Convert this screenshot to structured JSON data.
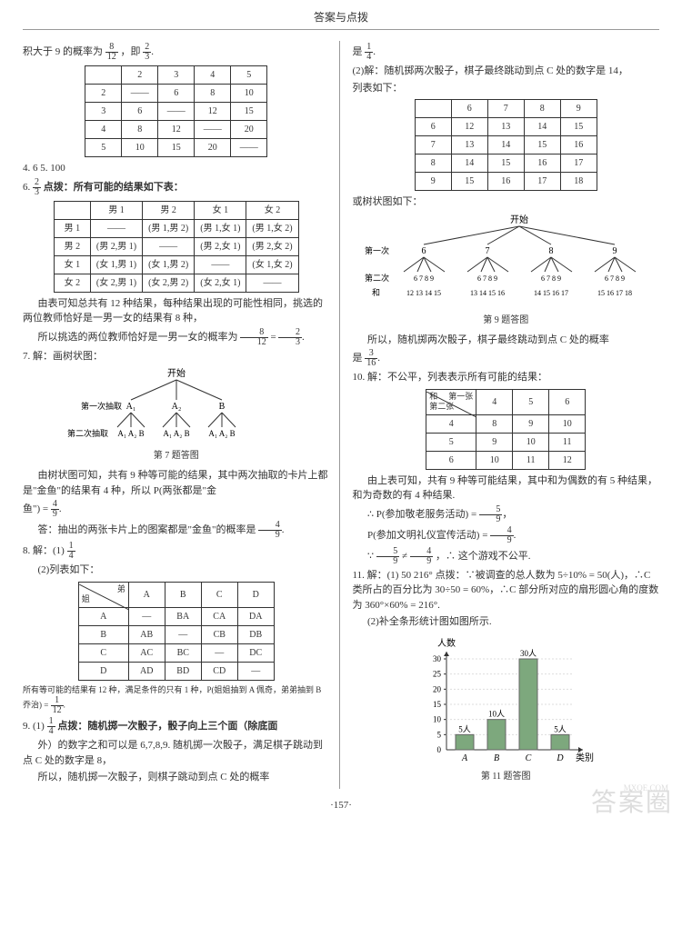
{
  "header": "答案与点拨",
  "left": {
    "intro": "积大于 9 的概率为",
    "frac1_n": "8",
    "frac1_d": "12",
    "intro2": "，即",
    "frac2_n": "2",
    "frac2_d": "3",
    "t1": {
      "head": [
        "",
        "2",
        "3",
        "4",
        "5"
      ],
      "rows": [
        [
          "2",
          "——",
          "6",
          "8",
          "10"
        ],
        [
          "3",
          "6",
          "——",
          "12",
          "15"
        ],
        [
          "4",
          "8",
          "12",
          "——",
          "20"
        ],
        [
          "5",
          "10",
          "15",
          "20",
          "——"
        ]
      ]
    },
    "q4": "4. 6   5. 100",
    "q6a": "6. ",
    "q6_frac_n": "2",
    "q6_frac_d": "3",
    "q6b": "  点拨：所有可能的结果如下表：",
    "t2": {
      "head": [
        "",
        "男 1",
        "男 2",
        "女 1",
        "女 2"
      ],
      "rows": [
        [
          "男 1",
          "——",
          "(男 1,男 2)",
          "(男 1,女 1)",
          "(男 1,女 2)"
        ],
        [
          "男 2",
          "(男 2,男 1)",
          "——",
          "(男 2,女 1)",
          "(男 2,女 2)"
        ],
        [
          "女 1",
          "(女 1,男 1)",
          "(女 1,男 2)",
          "——",
          "(女 1,女 2)"
        ],
        [
          "女 2",
          "(女 2,男 1)",
          "(女 2,男 2)",
          "(女 2,女 1)",
          "——"
        ]
      ]
    },
    "q6c": "由表可知总共有 12 种结果，每种结果出现的可能性相同，挑选的两位教师恰好是一男一女的结果有 8 种，",
    "q6d": "所以挑选的两位教师恰好是一男一女的概率为",
    "q6_f2n": "8",
    "q6_f2d": "12",
    "q6_eq": " = ",
    "q6_f3n": "2",
    "q6_f3d": "3",
    "q7": "7. 解：画树状图：",
    "tree7": {
      "start": "开始",
      "l1": [
        "A₁",
        "A₂",
        "B"
      ],
      "l2": [
        "A₁ A₂ B",
        "A₁ A₂ B",
        "A₁ A₂ B"
      ],
      "labels": [
        "第一次抽取",
        "第二次抽取"
      ]
    },
    "cap7": "第 7 题答图",
    "q7a": "由树状图可知，共有 9 种等可能的结果，其中两次抽取的卡片上都是\"金鱼\"的结果有 4 种，所以 P(两张都是\"金",
    "q7b": "鱼\") = ",
    "q7_fn": "4",
    "q7_fd": "9",
    "q7c": "答：抽出的两张卡片上的图案都是\"金鱼\"的概率是",
    "q7_f2n": "4",
    "q7_f2d": "9",
    "q8": "8. 解：(1) ",
    "q8_fn": "1",
    "q8_fd": "4",
    "q8b": "(2)列表如下：",
    "t3": {
      "corner_top": "弟",
      "corner_left": "姐",
      "head": [
        "A",
        "B",
        "C",
        "D"
      ],
      "rows": [
        [
          "A",
          "—",
          "BA",
          "CA",
          "DA"
        ],
        [
          "B",
          "AB",
          "—",
          "CB",
          "DB"
        ],
        [
          "C",
          "AC",
          "BC",
          "—",
          "DC"
        ],
        [
          "D",
          "AD",
          "BD",
          "CD",
          "—"
        ]
      ]
    },
    "q8c": "所有等可能的结果有 12 种，满足条件的只有 1 种，P(姐姐抽到 A 佩奇，弟弟抽到 B 乔治) = ",
    "q8_f2n": "1",
    "q8_f2d": "12",
    "q9": "9. (1) ",
    "q9_fn": "1",
    "q9_fd": "4",
    "q9a": "  点拨：随机掷一次骰子，骰子向上三个面（除底面",
    "q9b": "外）的数字之和可以是 6,7,8,9. 随机掷一次骰子，满足棋子跳动到点 C 处的数字是 8，",
    "q9c": "所以，随机掷一次骰子，则棋子跳动到点 C 处的概率"
  },
  "right": {
    "cont": "是 ",
    "cont_fn": "1",
    "cont_fd": "4",
    "q2a": "(2)解：随机掷两次骰子，棋子最终跳动到点 C 处的数字是 14，",
    "q2b": "列表如下：",
    "t4": {
      "head": [
        "",
        "6",
        "7",
        "8",
        "9"
      ],
      "rows": [
        [
          "6",
          "12",
          "13",
          "14",
          "15"
        ],
        [
          "7",
          "13",
          "14",
          "15",
          "16"
        ],
        [
          "8",
          "14",
          "15",
          "16",
          "17"
        ],
        [
          "9",
          "15",
          "16",
          "17",
          "18"
        ]
      ]
    },
    "tree_label": "或树状图如下：",
    "tree9": {
      "start": "开始",
      "l1": [
        "6",
        "7",
        "8",
        "9"
      ],
      "l2": [
        "6 7 8 9",
        "6 7 8 9",
        "6 7 8 9",
        "6 7 8 9"
      ],
      "sums": [
        "12 13 14 15",
        "13 14 15 16",
        "14 15 16 17",
        "15 16 17 18"
      ],
      "labels": [
        "第一次",
        "第二次",
        "和"
      ]
    },
    "cap9": "第 9 题答图",
    "q9d": "所以，随机掷两次骰子，棋子最终跳动到点 C 处的概率",
    "q9e": "是 ",
    "q9e_fn": "3",
    "q9e_fd": "16",
    "q10": "10. 解：不公平，列表表示所有可能的结果：",
    "t5": {
      "corner_top": "第一张",
      "corner_left": "第二张",
      "corner_sum": "和",
      "head": [
        "4",
        "5",
        "6"
      ],
      "rows": [
        [
          "4",
          "8",
          "9",
          "10"
        ],
        [
          "5",
          "9",
          "10",
          "11"
        ],
        [
          "6",
          "10",
          "11",
          "12"
        ]
      ]
    },
    "q10a": "由上表可知，共有 9 种等可能结果，其中和为偶数的有 5 种结果，和为奇数的有 4 种结果.",
    "q10b": "∴ P(参加敬老服务活动) = ",
    "q10b_fn": "5",
    "q10b_fd": "9",
    "q10c": "P(参加文明礼仪宣传活动) = ",
    "q10c_fn": "4",
    "q10c_fd": "9",
    "q10d": "∵ ",
    "q10d_f1n": "5",
    "q10d_f1d": "9",
    "q10d_ne": " ≠ ",
    "q10d_f2n": "4",
    "q10d_f2d": "9",
    "q10e": "，∴ 这个游戏不公平.",
    "q11": "11. 解：(1) 50  216°  点拨：∵被调查的总人数为 5÷10% = 50(人)，∴C 类所占的百分比为 30÷50 = 60%，∴C 部分所对应的扇形圆心角的度数为 360°×60% = 216°.",
    "q11b": "(2)补全条形统计图如图所示.",
    "bar": {
      "ylabel": "人数",
      "xlabel": "类别",
      "ymax": 30,
      "ytick": 5,
      "cats": [
        "A",
        "B",
        "C",
        "D"
      ],
      "vals": [
        5,
        10,
        30,
        5
      ],
      "labels": [
        "5人",
        "10人",
        "30人",
        "5人"
      ],
      "bar_color": "#7da87d",
      "axis_color": "#333333"
    },
    "cap11": "第 11 题答图"
  },
  "page_num": "·157·",
  "watermark": "答案圈",
  "wm_url": "MXQE.COM"
}
